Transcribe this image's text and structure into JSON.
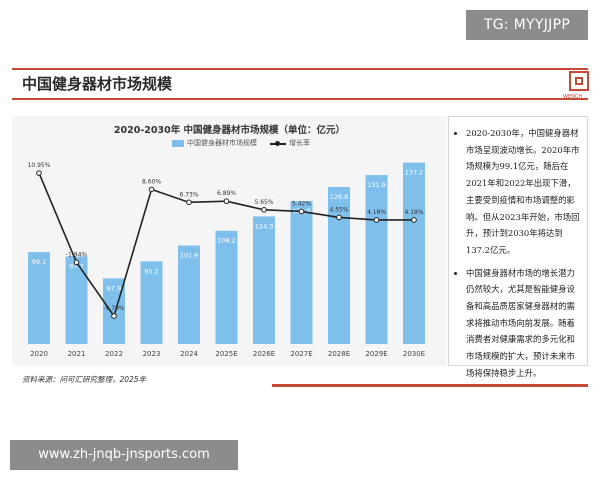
{
  "watermark_top": "TG: MYYJJPP",
  "page_title": "中国健身器材市场规模",
  "logo": {
    "caption": "WENCH"
  },
  "source": "资料来源：问可汇研究整理，2025年",
  "watermark_bottom": "www.zh-jnqb-jnsports.com",
  "side_notes": [
    "2020-2030年，中国健身器材市场呈现波动增长。2020年市场规模为99.1亿元，随后在2021年和2022年出现下滑，主要受到疫情和市场调整的影响。但从2023年开始，市场回升，预计到2030年将达到137.2亿元。",
    "中国健身器材市场的增长潜力仍然较大，尤其是智能健身设备和高品质居家健身器材的需求将推动市场向前发展。随着消费者对健康需求的多元化和市场规模的扩大，预计未来市场将保持稳步上升。"
  ],
  "colors": {
    "bar": "#7fbfec",
    "line": "#222222",
    "accent": "#c54a34"
  },
  "chart_data": {
    "type": "bar",
    "title": "2020-2030年 中国健身器材市场规模（单位：亿元）",
    "legend": {
      "bar_label": "中国健身器材市场规模",
      "line_label": "增长率",
      "placement": "top"
    },
    "categories": [
      "2020",
      "2021",
      "2022",
      "2023",
      "2024",
      "2025E",
      "2026E",
      "2027E",
      "2028E",
      "2029E",
      "2030E"
    ],
    "series": [
      {
        "name": "中国健身器材市场规模",
        "type": "bar",
        "values": [
          99.1,
          97.2,
          87.9,
          95.2,
          101.9,
          108.2,
          114.3,
          120.8,
          126.8,
          131.9,
          137.2
        ],
        "labels": [
          "99.1",
          "97.2",
          "87.9",
          "95.2",
          "101.9",
          "108.2",
          "114.3",
          "120.8",
          "126.8",
          "131.9",
          "137.2"
        ]
      },
      {
        "name": "增长率",
        "type": "line",
        "values": [
          10.95,
          -1.94,
          -9.7,
          8.6,
          6.73,
          6.89,
          5.65,
          5.42,
          4.55,
          4.18,
          4.18
        ],
        "labels": [
          "10.95%",
          "-1.94%",
          "-9.70%",
          "8.60%",
          "6.73%",
          "6.89%",
          "5.65%",
          "5.42%",
          "4.55%",
          "4.18%",
          "4.18%"
        ]
      }
    ],
    "bar_axis_range": [
      60,
      140
    ],
    "line_axis_range": [
      -12,
      14
    ],
    "grid": false
  }
}
